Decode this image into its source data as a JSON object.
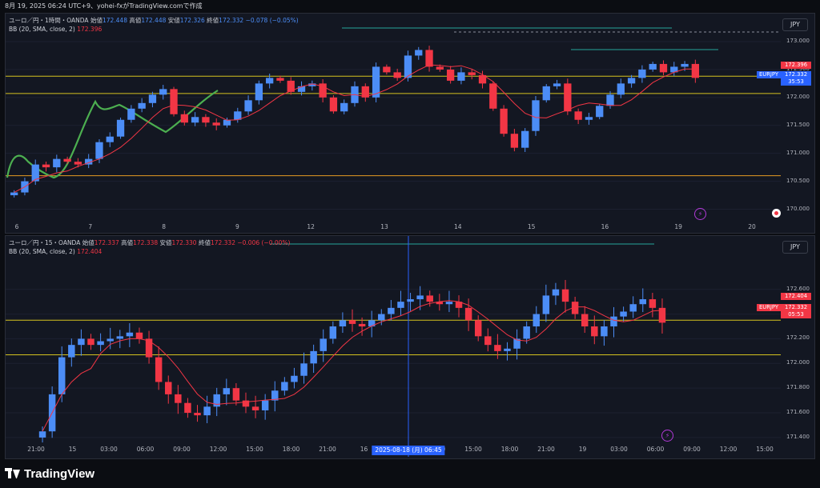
{
  "topbar": {
    "text": "8月 19, 2025 06:24 UTC+9、yohei-fxがTradingView.comで作成"
  },
  "pane1": {
    "symbol": "ユーロ／円・1時間・OANDA",
    "open_label": "始値",
    "open": "172.448",
    "high_label": "高値",
    "high": "172.448",
    "low_label": "安値",
    "low": "172.326",
    "close_label": "終値",
    "close": "172.332",
    "change": "−0.078 (−0.05%)",
    "bb_label": "BB (20, SMA, close, 2)",
    "bb_value": "172.396",
    "currency": "JPY",
    "yticks": [
      "173.000",
      "172.500",
      "172.000",
      "171.500",
      "171.000",
      "170.500",
      "170.000"
    ],
    "xticks": [
      "6",
      "7",
      "8",
      "9",
      "12",
      "13",
      "14",
      "15",
      "16",
      "19",
      "20"
    ],
    "price_tag_bb": "172.396",
    "pair_tag": "EURJPY",
    "price_tag": "172.332",
    "countdown": "35:53"
  },
  "pane2": {
    "symbol": "ユーロ／円・15・OANDA",
    "open_label": "始値",
    "open": "172.337",
    "high_label": "高値",
    "high": "172.338",
    "low_label": "安値",
    "low": "172.330",
    "close_label": "終値",
    "close": "172.332",
    "change": "−0.006 (−0.00%)",
    "bb_label": "BB (20, SMA, close, 2)",
    "bb_value": "172.404",
    "currency": "JPY",
    "yticks": [
      "172.600",
      "172.400",
      "172.200",
      "172.000",
      "171.800",
      "171.600",
      "171.400"
    ],
    "xticks": [
      "21:00",
      "15",
      "03:00",
      "06:00",
      "09:00",
      "12:00",
      "15:00",
      "18:00",
      "21:00",
      "16",
      "03:00",
      "12:00",
      "15:00",
      "18:00",
      "21:00",
      "19",
      "03:00",
      "06:00",
      "09:00",
      "12:00",
      "15:00"
    ],
    "crosshair_label": "2025-08-18 (月)   06:45",
    "price_tag_bb": "172.404",
    "pair_tag": "EURJPY",
    "price_tag": "172.332",
    "countdown": "05:53"
  },
  "footer": {
    "brand": "TradingView"
  },
  "colors": {
    "up": "#4c8df6",
    "down": "#f23645",
    "ma": "#f23645",
    "hline_yellow": "#d4c21f",
    "hline_orange": "#e59b22",
    "teal": "#26a69a",
    "green_curve": "#4caf50",
    "background": "#131722"
  },
  "chart_data": [
    {
      "type": "candlestick",
      "title": "ユーロ／円・1時間・OANDA",
      "ylim": [
        169.95,
        173.1
      ],
      "x_tick_labels": [
        "6",
        "7",
        "8",
        "9",
        "12",
        "13",
        "14",
        "15",
        "16",
        "19",
        "20"
      ],
      "hlines": [
        {
          "value": 172.38,
          "color": "yellow"
        },
        {
          "value": 172.07,
          "color": "yellow"
        },
        {
          "value": 170.6,
          "color": "orange"
        }
      ],
      "series": [
        {
          "values": [
            170.3,
            170.5,
            170.8,
            170.75,
            170.9,
            170.85,
            170.8,
            170.9,
            171.2,
            171.3,
            171.6,
            171.8,
            171.9,
            172.05,
            172.15,
            171.7,
            171.55,
            171.65,
            171.55,
            171.5,
            171.6,
            171.75,
            171.95,
            172.25,
            172.35,
            172.3,
            172.1,
            172.2,
            172.25,
            172.0,
            171.75,
            171.9,
            172.2,
            172.0,
            172.55,
            172.45,
            172.35,
            172.75,
            172.85,
            172.55,
            172.5,
            172.3,
            172.45,
            172.4,
            172.25,
            171.8,
            171.35,
            171.1,
            171.4,
            171.95,
            172.2,
            172.25,
            171.75,
            171.6,
            171.65,
            171.85,
            172.05,
            172.25,
            172.35,
            172.5,
            172.6,
            172.45,
            172.55,
            172.6,
            172.35
          ]
        }
      ]
    },
    {
      "type": "candlestick",
      "title": "ユーロ／円・15・OANDA",
      "ylim": [
        171.38,
        172.76
      ],
      "x_tick_labels": [
        "21:00",
        "15",
        "03:00",
        "06:00",
        "09:00",
        "12:00",
        "15:00",
        "18:00",
        "21:00",
        "16",
        "03:00",
        "12:00",
        "15:00",
        "18:00",
        "21:00",
        "19",
        "03:00",
        "06:00",
        "09:00",
        "12:00",
        "15:00"
      ],
      "hlines": [
        {
          "value": 172.35,
          "color": "yellow"
        },
        {
          "value": 172.07,
          "color": "yellow"
        }
      ],
      "series": [
        {
          "values": [
            171.45,
            171.75,
            172.05,
            172.15,
            172.2,
            172.15,
            172.18,
            172.2,
            172.22,
            172.25,
            172.2,
            172.05,
            171.85,
            171.75,
            171.68,
            171.6,
            171.58,
            171.65,
            171.75,
            171.8,
            171.7,
            171.65,
            171.62,
            171.7,
            171.78,
            171.85,
            171.9,
            172.0,
            172.1,
            172.2,
            172.3,
            172.35,
            172.32,
            172.3,
            172.35,
            172.4,
            172.45,
            172.5,
            172.52,
            172.55,
            172.5,
            172.48,
            172.5,
            172.45,
            172.35,
            172.22,
            172.15,
            172.1,
            172.12,
            172.2,
            172.3,
            172.4,
            172.55,
            172.6,
            172.5,
            172.4,
            172.3,
            172.22,
            172.3,
            172.38,
            172.42,
            172.48,
            172.52,
            172.45,
            172.33
          ]
        }
      ]
    }
  ]
}
